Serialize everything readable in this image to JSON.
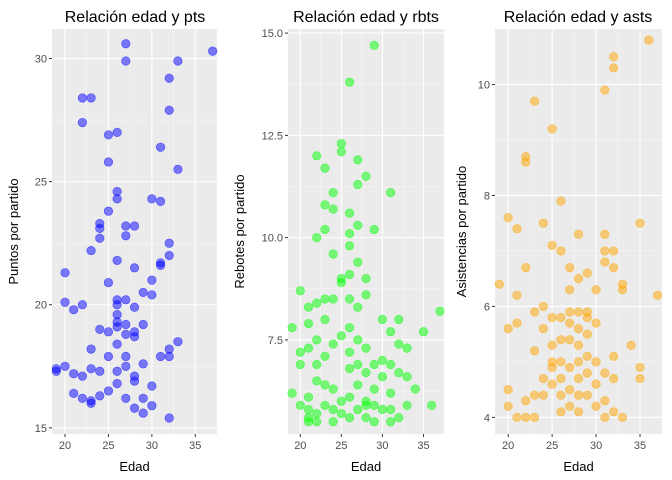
{
  "chart_data": [
    {
      "type": "scatter",
      "title": "Relación edad y pts",
      "xlabel": "Edad",
      "ylabel": "Puntos por partido",
      "xlim": [
        18.5,
        37.5
      ],
      "ylim": [
        14.75,
        31.2
      ],
      "xticks": [
        20,
        25,
        30,
        35
      ],
      "yticks": [
        15,
        20,
        25,
        30
      ],
      "grid": true,
      "color": "#0000FF",
      "x": [
        19,
        19,
        20,
        20,
        21,
        22,
        22,
        22,
        23,
        23,
        23,
        23,
        24,
        24,
        24,
        24,
        24,
        25,
        25,
        25,
        25,
        25,
        25,
        26,
        26,
        26,
        26,
        26,
        26,
        26,
        26,
        26,
        26,
        26,
        27,
        27,
        27,
        27,
        27,
        27,
        27,
        27,
        28,
        28,
        28,
        28,
        28,
        28,
        28,
        29,
        29,
        29,
        29,
        29,
        30,
        30,
        30,
        30,
        30,
        31,
        31,
        31,
        31,
        32,
        32,
        32,
        32,
        32,
        32,
        32,
        33,
        33,
        33,
        37,
        20,
        21,
        21,
        22,
        22,
        23,
        23,
        24,
        25,
        26,
        27,
        27,
        28,
        31
      ],
      "y": [
        17.3,
        17.4,
        17.5,
        21.3,
        16.4,
        16.2,
        17.1,
        20.0,
        16.0,
        16.1,
        17.4,
        18.2,
        16.3,
        17.3,
        19.0,
        22.7,
        23.1,
        16.5,
        17.9,
        18.9,
        23.8,
        25.8,
        26.9,
        16.8,
        17.3,
        18.4,
        19.1,
        19.3,
        19.6,
        20.0,
        20.2,
        21.8,
        24.3,
        24.6,
        16.2,
        17.5,
        19.2,
        20.2,
        22.8,
        29.9,
        30.6,
        23.2,
        15.8,
        17.1,
        18.7,
        18.9,
        19.9,
        21.5,
        23.2,
        15.6,
        16.2,
        17.6,
        19.2,
        20.5,
        15.9,
        16.7,
        20.4,
        21.0,
        24.3,
        17.9,
        21.6,
        24.2,
        26.4,
        15.4,
        17.9,
        18.2,
        22.0,
        22.5,
        27.9,
        29.2,
        18.5,
        25.5,
        29.9,
        30.3,
        20.1,
        19.8,
        17.2,
        28.4,
        27.4,
        28.4,
        22.2,
        23.3,
        20.9,
        27.0,
        18.8,
        17.9,
        16.9,
        21.7
      ]
    },
    {
      "type": "scatter",
      "title": "Relación edad y rbts",
      "xlabel": "Edad",
      "ylabel": "Rebotes por partido",
      "xlim": [
        18.5,
        37.5
      ],
      "ylim": [
        5.2,
        15.1
      ],
      "xticks": [
        20,
        25,
        30,
        35
      ],
      "yticks": [
        7.5,
        10.0,
        12.5,
        15.0
      ],
      "grid": true,
      "color": "#00FF00",
      "x": [
        19,
        19,
        20,
        20,
        20,
        20,
        21,
        21,
        21,
        21,
        21,
        21,
        21,
        22,
        22,
        22,
        22,
        22,
        22,
        22,
        22,
        23,
        23,
        23,
        23,
        23,
        23,
        23,
        23,
        24,
        24,
        24,
        24,
        24,
        24,
        24,
        24,
        25,
        25,
        25,
        25,
        25,
        25,
        25,
        26,
        26,
        26,
        26,
        26,
        26,
        26,
        26,
        26,
        26,
        26,
        27,
        27,
        27,
        27,
        27,
        27,
        27,
        27,
        27,
        28,
        28,
        28,
        28,
        28,
        28,
        28,
        29,
        29,
        29,
        29,
        29,
        30,
        30,
        30,
        31,
        31,
        31,
        31,
        31,
        32,
        32,
        32,
        32,
        33,
        33,
        33,
        34,
        35,
        36,
        37,
        29,
        30,
        31,
        28
      ],
      "y": [
        7.8,
        6.2,
        8.7,
        6.9,
        7.2,
        5.9,
        5.5,
        5.6,
        5.8,
        6.1,
        7.3,
        7.9,
        8.3,
        5.5,
        5.7,
        6.5,
        6.9,
        7.5,
        8.4,
        10.0,
        12.0,
        5.9,
        6.4,
        7.1,
        8.0,
        8.5,
        10.2,
        10.8,
        11.7,
        5.5,
        5.8,
        6.3,
        7.4,
        8.5,
        9.6,
        10.7,
        11.1,
        5.7,
        6.0,
        7.6,
        8.9,
        12.1,
        12.3,
        9.0,
        5.6,
        6.1,
        6.8,
        7.2,
        7.8,
        8.5,
        9.1,
        9.8,
        10.1,
        10.6,
        13.8,
        5.8,
        6.4,
        6.9,
        7.5,
        8.3,
        9.4,
        10.3,
        11.3,
        11.9,
        5.6,
        6.0,
        6.7,
        7.3,
        8.6,
        9.0,
        11.5,
        5.5,
        5.9,
        6.9,
        10.2,
        14.7,
        5.8,
        7.0,
        8.0,
        5.8,
        6.2,
        6.9,
        7.7,
        11.1,
        5.6,
        6.7,
        7.4,
        8.0,
        5.9,
        6.6,
        7.3,
        6.3,
        7.7,
        5.9,
        8.2,
        6.3,
        6.6,
        5.5,
        5.9
      ]
    },
    {
      "type": "scatter",
      "title": "Relación edad y asts",
      "xlabel": "Edad",
      "ylabel": "Asistencias por partido",
      "xlim": [
        18.5,
        37.5
      ],
      "ylim": [
        3.7,
        11.0
      ],
      "xticks": [
        20,
        25,
        30,
        35
      ],
      "yticks": [
        4,
        6,
        8,
        10
      ],
      "grid": true,
      "color": "#FFA500",
      "x": [
        19,
        20,
        20,
        20,
        20,
        21,
        21,
        21,
        21,
        22,
        22,
        22,
        22,
        22,
        23,
        23,
        23,
        23,
        23,
        24,
        24,
        24,
        24,
        24,
        25,
        25,
        25,
        25,
        25,
        25,
        25,
        26,
        26,
        26,
        26,
        26,
        26,
        26,
        26,
        27,
        27,
        27,
        27,
        27,
        27,
        27,
        27,
        28,
        28,
        28,
        28,
        28,
        28,
        28,
        28,
        28,
        29,
        29,
        29,
        29,
        29,
        29,
        29,
        30,
        30,
        30,
        30,
        30,
        31,
        31,
        31,
        31,
        31,
        31,
        32,
        32,
        32,
        32,
        32,
        32,
        33,
        33,
        33,
        34,
        35,
        35,
        35,
        36,
        37,
        31,
        32
      ],
      "y": [
        6.4,
        4.2,
        4.5,
        5.6,
        7.6,
        4.0,
        5.7,
        6.2,
        7.4,
        4.0,
        4.3,
        6.7,
        8.6,
        8.7,
        4.0,
        4.4,
        5.9,
        9.7,
        5.2,
        4.4,
        4.7,
        5.6,
        6.0,
        7.5,
        4.6,
        4.9,
        5.3,
        5.8,
        7.1,
        9.2,
        5.0,
        4.1,
        4.4,
        4.7,
        5.0,
        5.4,
        5.8,
        7.9,
        7.0,
        4.2,
        4.5,
        4.9,
        5.4,
        5.7,
        5.9,
        6.7,
        6.3,
        4.1,
        4.4,
        4.7,
        5.0,
        5.3,
        5.6,
        5.9,
        6.5,
        7.3,
        4.4,
        4.8,
        5.1,
        5.5,
        5.8,
        5.9,
        6.6,
        4.2,
        4.6,
        5.0,
        5.7,
        6.3,
        4.0,
        4.3,
        4.8,
        6.8,
        7.0,
        7.3,
        4.1,
        4.7,
        5.1,
        6.7,
        7.0,
        10.5,
        4.0,
        6.3,
        6.4,
        5.3,
        4.7,
        4.9,
        7.5,
        10.8,
        6.2,
        9.9,
        10.3
      ]
    }
  ]
}
